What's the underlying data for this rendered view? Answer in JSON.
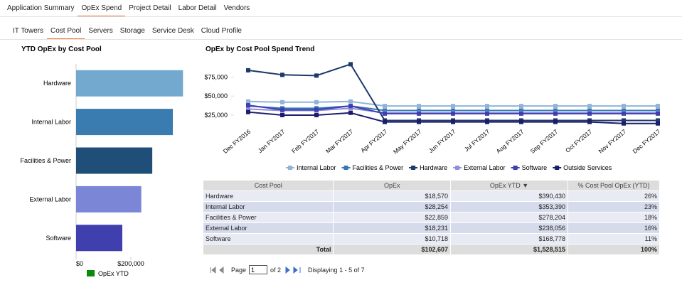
{
  "tabs": [
    "Application Summary",
    "OpEx Spend",
    "Project Detail",
    "Labor Detail",
    "Vendors"
  ],
  "subtabs": [
    "IT Towers",
    "Cost Pool",
    "Servers",
    "Storage",
    "Service Desk",
    "Cloud Profile"
  ],
  "chart_data": [
    {
      "type": "hbar",
      "title": "YTD OpEx by Cost Pool",
      "categories": [
        "Hardware",
        "Internal Labor",
        "Facilities & Power",
        "External Labor",
        "Software"
      ],
      "values": [
        390430,
        353390,
        278204,
        238056,
        168778
      ],
      "colors": [
        "#74a9cf",
        "#3a7bb0",
        "#1f4e79",
        "#7b86d6",
        "#3f3fae"
      ],
      "series_name": "OpEx YTD",
      "legend_color": "#0a8a0a",
      "xlim": [
        0,
        400000
      ],
      "xticks": [
        {
          "value": 0,
          "label": "$0"
        },
        {
          "value": 200000,
          "label": "$200,000"
        }
      ]
    },
    {
      "type": "line",
      "title": "OpEx by Cost Pool Spend Trend",
      "categories": [
        "Dec FY2016",
        "Jan FY2017",
        "Feb FY2017",
        "Mar FY2017",
        "Apr FY2017",
        "May FY2017",
        "Jun FY2017",
        "Jul FY2017",
        "Aug FY2017",
        "Sep FY2017",
        "Oct FY2017",
        "Nov FY2017",
        "Dec FY2017"
      ],
      "ylim": [
        10000,
        97000
      ],
      "yticks": [
        {
          "value": 25000,
          "label": "$25,000"
        },
        {
          "value": 50000,
          "label": "$50,000"
        },
        {
          "value": 75000,
          "label": "$75,000"
        }
      ],
      "series": [
        {
          "name": "Internal Labor",
          "color": "#8fb4d9",
          "values": [
            43000,
            42000,
            42000,
            43000,
            37000,
            37000,
            37000,
            37000,
            37000,
            37000,
            37000,
            37000,
            37000
          ]
        },
        {
          "name": "Facilities & Power",
          "color": "#3478b4",
          "values": [
            37000,
            34000,
            34000,
            37000,
            31000,
            31000,
            31000,
            31000,
            31000,
            31000,
            31000,
            31000,
            31000
          ]
        },
        {
          "name": "Hardware",
          "color": "#1e3a6a",
          "values": [
            84000,
            78000,
            77000,
            92000,
            18000,
            18000,
            18000,
            18000,
            18000,
            18000,
            18000,
            18000,
            18000
          ]
        },
        {
          "name": "External Labor",
          "color": "#8e8fd8",
          "values": [
            33000,
            31000,
            31000,
            34000,
            28000,
            28000,
            28000,
            28000,
            28000,
            28000,
            28000,
            28000,
            28000
          ]
        },
        {
          "name": "Software",
          "color": "#3f3fb0",
          "values": [
            38000,
            32000,
            32000,
            37000,
            27000,
            27000,
            27000,
            27000,
            27000,
            27000,
            27000,
            27000,
            27000
          ]
        },
        {
          "name": "Outside Services",
          "color": "#1c1c6e",
          "values": [
            29000,
            25000,
            25000,
            28000,
            16000,
            16000,
            16000,
            16000,
            16000,
            16000,
            16000,
            14000,
            14000
          ]
        }
      ]
    }
  ],
  "table": {
    "headers": [
      "Cost Pool",
      "OpEx",
      "OpEx YTD ▼",
      "% Cost Pool OpEx (YTD)"
    ],
    "rows": [
      [
        "Hardware",
        "$18,570",
        "$390,430",
        "26%"
      ],
      [
        "Internal Labor",
        "$28,254",
        "$353,390",
        "23%"
      ],
      [
        "Facilities & Power",
        "$22,859",
        "$278,204",
        "18%"
      ],
      [
        "External Labor",
        "$18,231",
        "$238,056",
        "16%"
      ],
      [
        "Software",
        "$10,718",
        "$168,778",
        "11%"
      ]
    ],
    "total": [
      "Total",
      "$102,607",
      "$1,528,515",
      "100%"
    ]
  },
  "pager": {
    "page_label": "Page",
    "page": "1",
    "of": "of 2",
    "display": "Displaying 1 - 5 of 7"
  }
}
